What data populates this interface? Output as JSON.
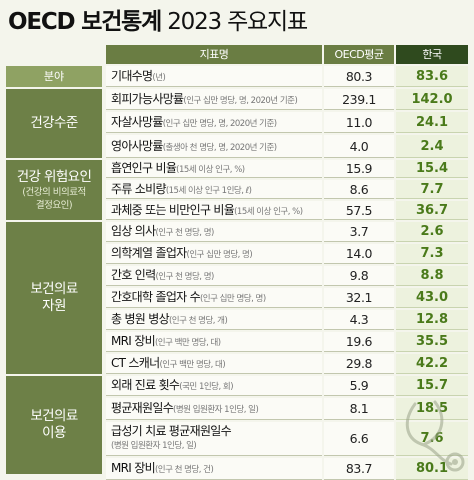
{
  "title": {
    "main": "OECD 보건통계",
    "year": "2023",
    "sub": "주요지표"
  },
  "header": {
    "col_name": "지표명",
    "col_oecd": "OECD평균",
    "col_korea": "한국",
    "col_category": "분야"
  },
  "groups": [
    {
      "name": "건강수준",
      "note": ""
    },
    {
      "name": "건강 위험요인",
      "note": "(건강의 비의료적\n결정요인)"
    },
    {
      "name": "보건의료\n자원",
      "note": ""
    },
    {
      "name": "보건의료\n이용",
      "note": ""
    }
  ],
  "rows": [
    {
      "name": "기대수명",
      "note": "(년)",
      "oecd": "80.3",
      "korea": "83.6"
    },
    {
      "name": "회피가능사망률",
      "note": "(인구 십만 명당, 명, 2020년 기준)",
      "oecd": "239.1",
      "korea": "142.0"
    },
    {
      "name": "자살사망률",
      "note": "(인구 십만 명당, 명, 2020년 기준)",
      "oecd": "11.0",
      "korea": "24.1"
    },
    {
      "name": "영아사망률",
      "note": "(출생아 천 명당, 명, 2020년 기준)",
      "oecd": "4.0",
      "korea": "2.4"
    },
    {
      "name": "흡연인구 비율",
      "note": "(15세 이상 인구, %)",
      "oecd": "15.9",
      "korea": "15.4"
    },
    {
      "name": "주류 소비량",
      "note": "(15세 이상 인구 1인당, ℓ)",
      "oecd": "8.6",
      "korea": "7.7"
    },
    {
      "name": "과체중 또는 비만인구 비율",
      "note": "(15세 이상 인구, %)",
      "oecd": "57.5",
      "korea": "36.7"
    },
    {
      "name": "임상 의사",
      "note": "(인구 천 명당, 명)",
      "oecd": "3.7",
      "korea": "2.6"
    },
    {
      "name": "의학계열 졸업자",
      "note": "(인구 십만 명당, 명)",
      "oecd": "14.0",
      "korea": "7.3"
    },
    {
      "name": "간호 인력",
      "note": "(인구 천 명당, 명)",
      "oecd": "9.8",
      "korea": "8.8"
    },
    {
      "name": "간호대학 졸업자 수",
      "note": "(인구 십만 명당, 명)",
      "oecd": "32.1",
      "korea": "43.0"
    },
    {
      "name": "총 병원 병상",
      "note": "(인구 천 명당, 개)",
      "oecd": "4.3",
      "korea": "12.8"
    },
    {
      "name": "MRI 장비",
      "note": "(인구 백만 명당, 대)",
      "oecd": "19.6",
      "korea": "35.5"
    },
    {
      "name": "CT 스캐너",
      "note": "(인구 백만 명당, 대)",
      "oecd": "29.8",
      "korea": "42.2"
    },
    {
      "name": "외래 진료 횟수",
      "note": "(국민 1인당, 회)",
      "oecd": "5.9",
      "korea": "15.7"
    },
    {
      "name": "평균재원일수",
      "note": "(병원 입원환자 1인당, 일)",
      "oecd": "8.1",
      "korea": "18.5"
    },
    {
      "name": "급성기 치료 평균재원일수",
      "note": "(병원 입원환자 1인당, 일)",
      "oecd": "6.6",
      "korea": "7.6"
    },
    {
      "name": "MRI 장비",
      "note": "(인구 천 명당, 건)",
      "oecd": "83.7",
      "korea": "80.1"
    }
  ]
}
